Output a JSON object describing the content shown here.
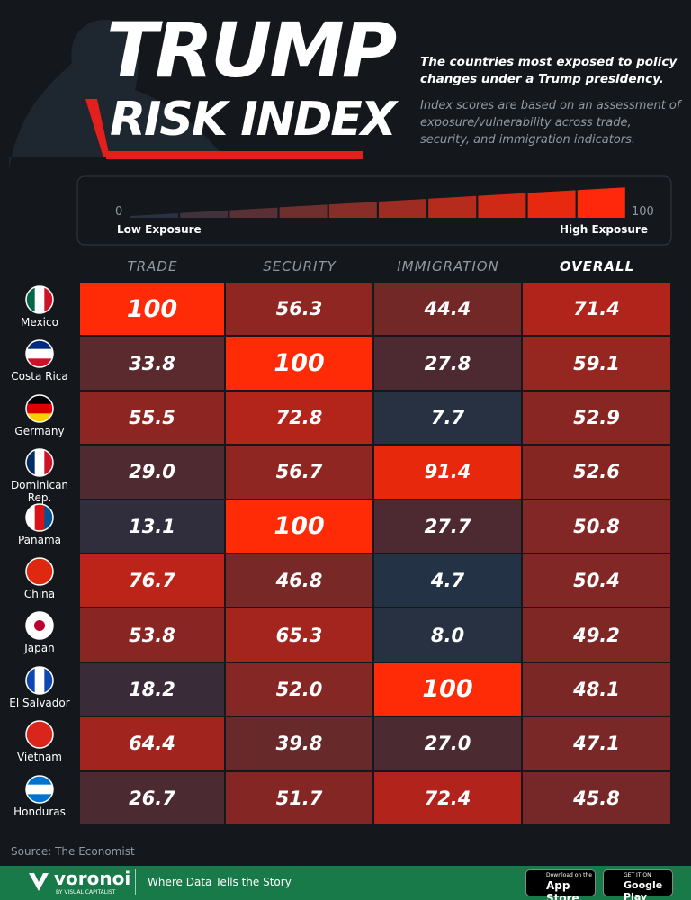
{
  "header": {
    "title_line1": "TRUMP",
    "title_line2": "RISK INDEX",
    "subtitle": "The countries most exposed to policy changes under a Trump presidency.",
    "description": "Index scores are based on an assessment of exposure/vulnerability across trade, security, and immigration indicators."
  },
  "legend": {
    "min": "0",
    "max": "100",
    "low_label": "Low Exposure",
    "high_label": "High Exposure"
  },
  "table": {
    "columns": [
      "TRADE",
      "SECURITY",
      "IMMIGRATION",
      "OVERALL"
    ],
    "rows": [
      {
        "country": "Mexico",
        "values": [
          "100",
          "56.3",
          "44.4",
          "71.4"
        ]
      },
      {
        "country": "Costa Rica",
        "values": [
          "33.8",
          "100",
          "27.8",
          "59.1"
        ]
      },
      {
        "country": "Germany",
        "values": [
          "55.5",
          "72.8",
          "7.7",
          "52.9"
        ]
      },
      {
        "country": "Dominican Rep.",
        "values": [
          "29.0",
          "56.7",
          "91.4",
          "52.6"
        ]
      },
      {
        "country": "Panama",
        "values": [
          "13.1",
          "100",
          "27.7",
          "50.8"
        ]
      },
      {
        "country": "China",
        "values": [
          "76.7",
          "46.8",
          "4.7",
          "50.4"
        ]
      },
      {
        "country": "Japan",
        "values": [
          "53.8",
          "65.3",
          "8.0",
          "49.2"
        ]
      },
      {
        "country": "El Salvador",
        "values": [
          "18.2",
          "52.0",
          "100",
          "48.1"
        ]
      },
      {
        "country": "Vietnam",
        "values": [
          "64.4",
          "39.8",
          "27.0",
          "47.1"
        ]
      },
      {
        "country": "Honduras",
        "values": [
          "26.7",
          "51.7",
          "72.4",
          "45.8"
        ]
      }
    ]
  },
  "footer": {
    "source": "Source: The Economist",
    "brand": "voronoi",
    "brand_sub": "BY VISUAL CAPITALIST",
    "tagline": "Where Data Tells the Story",
    "app_store_small": "Download on the",
    "app_store": "App Store",
    "google_small": "GET IT ON",
    "google": "Google Play"
  }
}
